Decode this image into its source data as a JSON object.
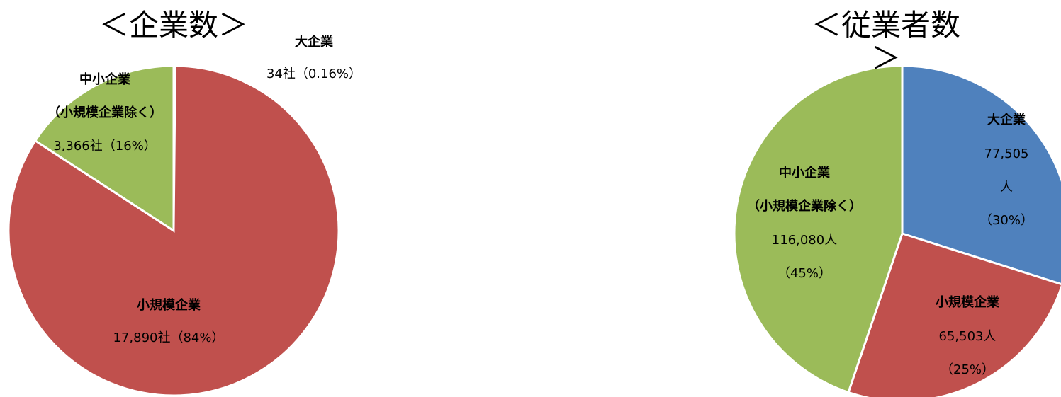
{
  "chart_data": [
    {
      "type": "pie",
      "title": "＜企業数＞",
      "categories": [
        "大企業",
        "小規模企業",
        "中小企業\n（小規模企業除く）"
      ],
      "values": [
        34,
        17890,
        3366
      ],
      "value_labels": [
        "34社（0.16%）",
        "17,890社（84%）",
        "3,366社（16%）"
      ],
      "colors": [
        "#4f81bd",
        "#c0504d",
        "#9bbb59"
      ]
    },
    {
      "type": "pie",
      "title": "＜従業者数＞",
      "categories": [
        "大企業",
        "小規模企業",
        "中小企業\n（小規模企業除く）"
      ],
      "values": [
        77505,
        65503,
        116080
      ],
      "value_labels": [
        "77,505人\n（30%）",
        "65,503人\n（25%）",
        "116,080人\n（45%）"
      ],
      "colors": [
        "#4f81bd",
        "#c0504d",
        "#9bbb59"
      ]
    }
  ]
}
